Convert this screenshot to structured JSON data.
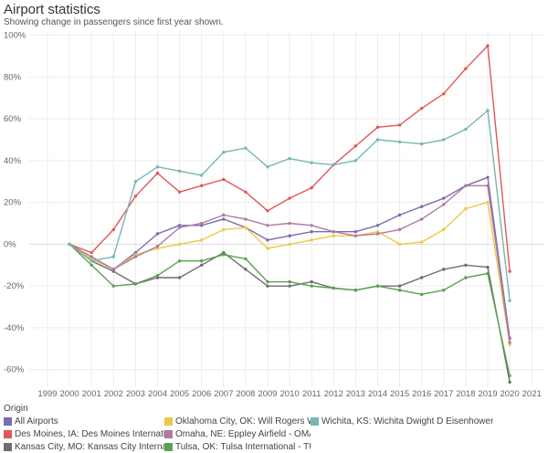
{
  "header": {
    "title": "Airport statistics",
    "subtitle": "Showing change in passengers since first year shown."
  },
  "legend": {
    "title": "Origin"
  },
  "chart_data": {
    "type": "line",
    "title": "Airport statistics",
    "subtitle": "Showing change in passengers since first year shown.",
    "xlabel": "",
    "ylabel": "",
    "x_ticks": [
      "1999",
      "2000",
      "2001",
      "2002",
      "2003",
      "2004",
      "2005",
      "2006",
      "2007",
      "2008",
      "2009",
      "2010",
      "2011",
      "2012",
      "2013",
      "2014",
      "2015",
      "2016",
      "2017",
      "2018",
      "2019",
      "2020",
      "2021"
    ],
    "x_range": [
      1999,
      2021
    ],
    "y_ticks": [
      "100%",
      "80%",
      "60%",
      "40%",
      "20%",
      "0%",
      "-20%",
      "-40%",
      "-60%"
    ],
    "y_tick_values": [
      100,
      80,
      60,
      40,
      20,
      0,
      -20,
      -40,
      -60
    ],
    "ylim": [
      -68,
      102
    ],
    "grid": true,
    "legend_position": "bottom",
    "legend_title": "Origin",
    "x": [
      2000,
      2001,
      2002,
      2003,
      2004,
      2005,
      2006,
      2007,
      2008,
      2009,
      2010,
      2011,
      2012,
      2013,
      2014,
      2015,
      2016,
      2017,
      2018,
      2019,
      2020
    ],
    "series": [
      {
        "name": "All Airports",
        "color": "#7b6bb0",
        "values": [
          0,
          -7,
          -12,
          -4,
          5,
          9,
          9,
          12,
          8,
          2,
          4,
          6,
          6,
          6,
          9,
          14,
          18,
          22,
          28,
          32,
          -45
        ]
      },
      {
        "name": "Des Moines, IA: Des Moines International - ...",
        "color": "#e15759",
        "values": [
          0,
          -4,
          7,
          23,
          34,
          25,
          28,
          31,
          25,
          16,
          22,
          27,
          38,
          47,
          56,
          57,
          65,
          72,
          84,
          95,
          -13
        ]
      },
      {
        "name": "Kansas City, MO: Kansas City International ...",
        "color": "#6e6e6e",
        "values": [
          0,
          -8,
          -13,
          -19,
          -16,
          -16,
          -10,
          -4,
          -12,
          -20,
          -20,
          -18,
          -21,
          -22,
          -20,
          -20,
          -16,
          -12,
          -10,
          -11,
          -66
        ]
      },
      {
        "name": "Oklahoma City, OK: Will Rogers World - OKC",
        "color": "#edc948",
        "values": [
          0,
          -7,
          -12,
          -5,
          -2,
          0,
          2,
          7,
          8,
          -2,
          0,
          2,
          4,
          4,
          6,
          0,
          1,
          7,
          17,
          20,
          -48
        ]
      },
      {
        "name": "Omaha, NE: Eppley Airfield - OMA",
        "color": "#b07aa1",
        "values": [
          0,
          -6,
          -12,
          -6,
          -1,
          8,
          10,
          14,
          12,
          9,
          10,
          9,
          6,
          4,
          5,
          7,
          12,
          19,
          28,
          28,
          -47
        ]
      },
      {
        "name": "Tulsa, OK: Tulsa International - TUL",
        "color": "#59a14f",
        "values": [
          0,
          -10,
          -20,
          -19,
          -15,
          -8,
          -8,
          -5,
          -7,
          -18,
          -18,
          -20,
          -21,
          -22,
          -20,
          -22,
          -24,
          -22,
          -16,
          -14,
          -63
        ]
      },
      {
        "name": "Wichita, KS: Wichita Dwight D Eisenhower ...",
        "color": "#76b7b2",
        "values": [
          0,
          -8,
          -6,
          30,
          37,
          35,
          33,
          44,
          46,
          37,
          41,
          39,
          38,
          40,
          50,
          49,
          48,
          50,
          55,
          64,
          -27
        ]
      }
    ]
  }
}
